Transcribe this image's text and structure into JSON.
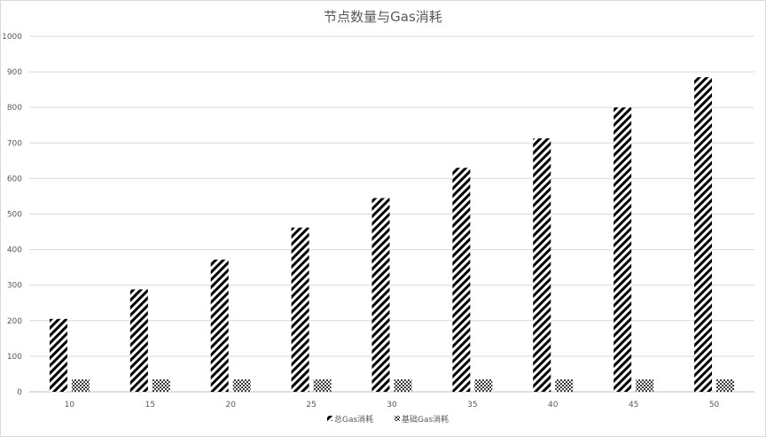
{
  "chart_data": {
    "type": "bar",
    "title": "节点数量与Gas消耗",
    "categories": [
      "10",
      "15",
      "20",
      "25",
      "30",
      "35",
      "40",
      "45",
      "50"
    ],
    "series": [
      {
        "name": "总Gas消耗",
        "values": [
          205,
          288,
          372,
          462,
          545,
          630,
          713,
          800,
          885
        ],
        "pattern": "diagonal-stripes",
        "color": "#000000"
      },
      {
        "name": "基础Gas消耗",
        "values": [
          35,
          35,
          35,
          35,
          35,
          35,
          35,
          35,
          35
        ],
        "pattern": "crosshatch",
        "color": "#000000"
      }
    ],
    "xlabel": "",
    "ylabel": "",
    "ylim": [
      0,
      1000
    ],
    "yticks": [
      0,
      100,
      200,
      300,
      400,
      500,
      600,
      700,
      800,
      900,
      1000
    ],
    "grid": true,
    "legend": "bottom-center"
  }
}
